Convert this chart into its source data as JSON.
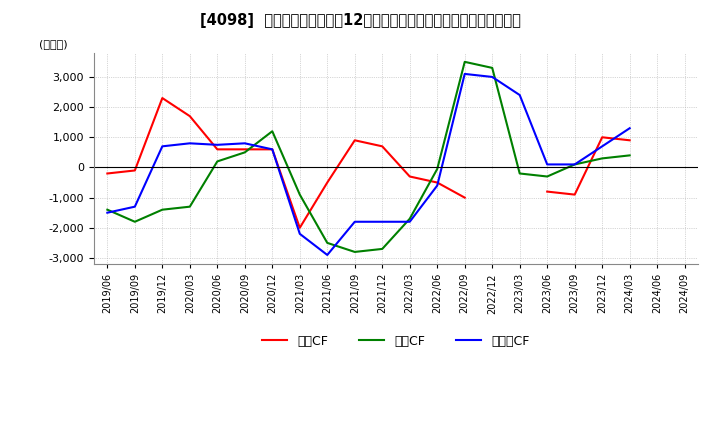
{
  "title": "[4098]  キャッシュフローの12か月移動合計の対前年同期増減額の推移",
  "ylabel": "(百万円)",
  "ylim": [
    -3200,
    3800
  ],
  "yticks": [
    -3000,
    -2000,
    -1000,
    0,
    1000,
    2000,
    3000
  ],
  "x_labels": [
    "2019/06",
    "2019/09",
    "2019/12",
    "2020/03",
    "2020/06",
    "2020/09",
    "2020/12",
    "2021/03",
    "2021/06",
    "2021/09",
    "2021/12",
    "2022/03",
    "2022/06",
    "2022/09",
    "2022/12",
    "2023/03",
    "2023/06",
    "2023/09",
    "2023/12",
    "2024/03",
    "2024/06",
    "2024/09"
  ],
  "operating_cf": [
    -200,
    -100,
    2300,
    1700,
    600,
    600,
    600,
    -2000,
    -500,
    900,
    700,
    -300,
    -500,
    -1000,
    null,
    null,
    -800,
    -900,
    1000,
    900,
    null,
    null
  ],
  "investing_cf": [
    -1400,
    -1800,
    -1400,
    -1300,
    200,
    500,
    1200,
    -900,
    -2500,
    -2800,
    -2700,
    -1700,
    -50,
    3500,
    3300,
    -200,
    -300,
    100,
    300,
    400,
    null,
    null
  ],
  "free_cf": [
    -1500,
    -1300,
    700,
    800,
    750,
    800,
    600,
    -2200,
    -2900,
    -1800,
    -1800,
    -1800,
    -600,
    3100,
    3000,
    2400,
    100,
    100,
    700,
    1300,
    null,
    null
  ],
  "colors": {
    "operating": "#ff0000",
    "investing": "#008000",
    "free": "#0000ff"
  },
  "legend_labels": [
    "営業CF",
    "投資CF",
    "フリーCF"
  ],
  "background_color": "#ffffff",
  "grid_color": "#b0b0b0"
}
